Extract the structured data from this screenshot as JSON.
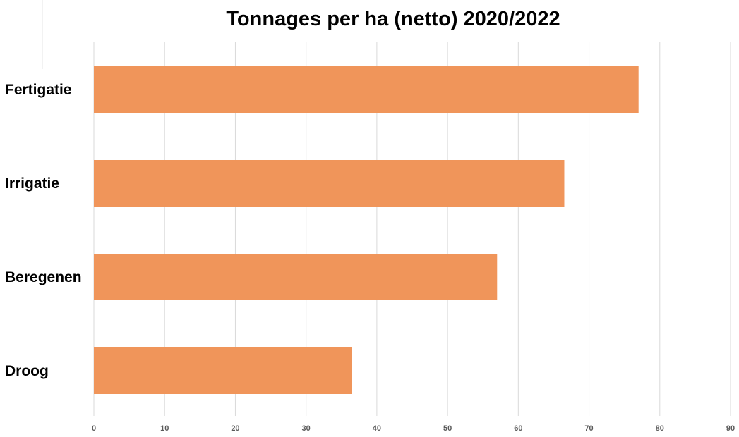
{
  "chart_data": {
    "type": "bar",
    "orientation": "horizontal",
    "title": "Tonnages per ha (netto) 2020/2022",
    "xlabel": "",
    "ylabel": "",
    "categories": [
      "Fertigatie",
      "Irrigatie",
      "Beregenen",
      "Droog"
    ],
    "values": [
      77,
      66.5,
      57,
      36.5
    ],
    "xlim": [
      0,
      90
    ],
    "xticks": [
      0,
      10,
      20,
      30,
      40,
      50,
      60,
      70,
      80,
      90
    ],
    "grid": true,
    "legend": "none",
    "bar_color": "#F0955A"
  }
}
